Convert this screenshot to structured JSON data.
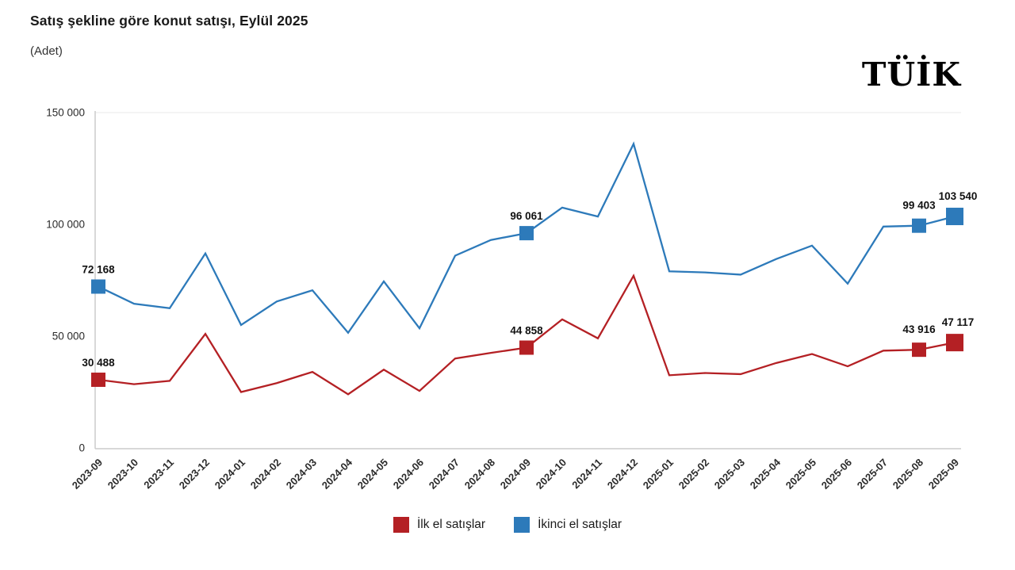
{
  "header": {
    "title": "Satış şekline göre konut satışı, Eylül 2025",
    "subtitle": "(Adet)",
    "logo_text": "TÜİK"
  },
  "colors": {
    "first_hand_red": "#B42024",
    "second_hand_blue": "#2D7ABA",
    "axis_line": "#cccccc",
    "grid_line": "#e9e9e9",
    "tick_text": "#2b2b2b",
    "annotation_text": "#111111"
  },
  "chart_data": {
    "type": "line",
    "title": "Satış şekline göre konut satışı, Eylül 2025",
    "subtitle": "(Adet)",
    "xlabel": "",
    "ylabel": "Adet",
    "ylim": [
      0,
      150000
    ],
    "grid": "top-line-only",
    "legend_position": "bottom-center",
    "x_tick_rotation": -45,
    "y_ticks": [
      {
        "value": 0,
        "label": "0"
      },
      {
        "value": 50000,
        "label": "50 000"
      },
      {
        "value": 100000,
        "label": "100 000"
      },
      {
        "value": 150000,
        "label": "150 000"
      }
    ],
    "x": [
      "2023-09",
      "2023-10",
      "2023-11",
      "2023-12",
      "2024-01",
      "2024-02",
      "2024-03",
      "2024-04",
      "2024-05",
      "2024-06",
      "2024-07",
      "2024-08",
      "2024-09",
      "2024-10",
      "2024-11",
      "2024-12",
      "2025-01",
      "2025-02",
      "2025-03",
      "2025-04",
      "2025-05",
      "2025-06",
      "2025-07",
      "2025-08",
      "2025-09"
    ],
    "series": [
      {
        "name": "İlk el satışlar",
        "color": "#B42024",
        "values": [
          30488,
          28500,
          30000,
          51000,
          25000,
          29000,
          34000,
          24000,
          35000,
          25500,
          40000,
          42500,
          44858,
          57500,
          49000,
          77000,
          32500,
          33500,
          33000,
          38000,
          42000,
          36500,
          43500,
          43916,
          47117
        ],
        "annotations": [
          {
            "index": 0,
            "label": "30 488"
          },
          {
            "index": 12,
            "label": "44 858"
          },
          {
            "index": 23,
            "label": "43 916"
          },
          {
            "index": 24,
            "label": "47 117"
          }
        ]
      },
      {
        "name": "İkinci el satışlar",
        "color": "#2D7ABA",
        "values": [
          72168,
          64500,
          62500,
          87000,
          55000,
          65500,
          70500,
          51500,
          74500,
          53500,
          86000,
          93000,
          96061,
          107500,
          103500,
          136000,
          79000,
          78500,
          77500,
          84500,
          90500,
          73500,
          99000,
          99403,
          103540
        ],
        "annotations": [
          {
            "index": 0,
            "label": "72 168"
          },
          {
            "index": 12,
            "label": "96 061"
          },
          {
            "index": 23,
            "label": "99 403"
          },
          {
            "index": 24,
            "label": "103 540"
          }
        ]
      }
    ]
  }
}
